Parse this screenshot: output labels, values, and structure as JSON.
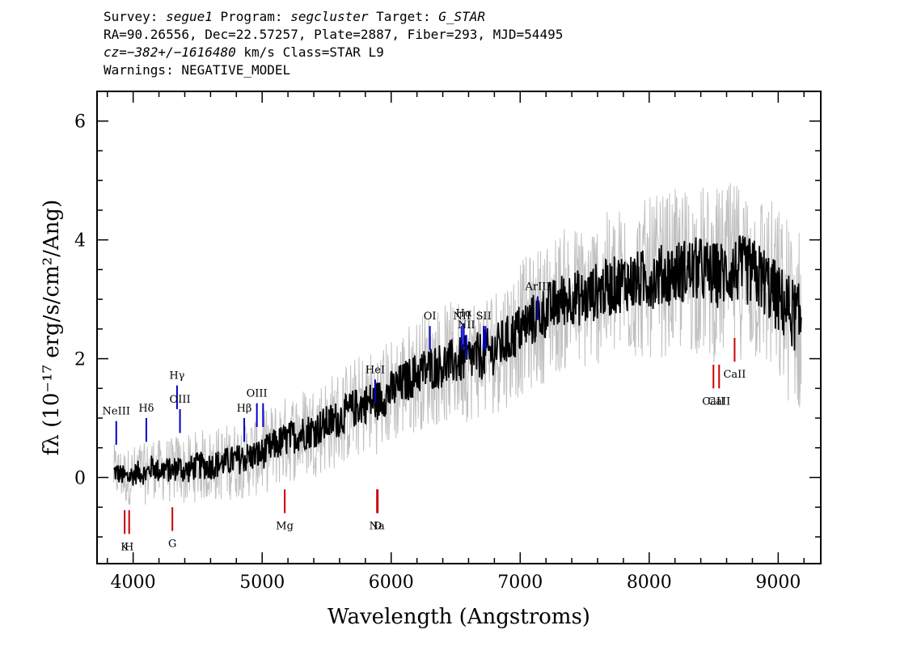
{
  "header": {
    "line1": {
      "survey_label": "Survey: ",
      "survey": "segue1",
      "program_label": " Program: ",
      "program": "segcluster",
      "target_label": " Target: ",
      "target": "G_STAR"
    },
    "line2": "RA=90.26556, Dec=22.57257, Plate=2887, Fiber=293, MJD=54495",
    "line3": {
      "cz": "cz=−382+/−1616480",
      "rest": " km/s Class=STAR L9"
    },
    "line4": "Warnings: NEGATIVE_MODEL"
  },
  "chart_data": {
    "type": "line",
    "xlabel": "Wavelength (Angstroms)",
    "ylabel": "fλ (10⁻¹⁷ erg/s/cm²/Ang)",
    "xlim": [
      3720,
      9330
    ],
    "ylim": [
      -1.45,
      6.5
    ],
    "x_ticks": [
      4000,
      5000,
      6000,
      7000,
      8000,
      9000
    ],
    "y_ticks": [
      0,
      2,
      4,
      6
    ],
    "colors": {
      "flux": "#000000",
      "error_band": "#c0c0c0",
      "emission": "#0000cc",
      "absorption": "#cc0000"
    },
    "series": [
      {
        "style": "black-smoothed",
        "x": [
          3850,
          3900,
          3950,
          4000,
          4050,
          4100,
          4150,
          4200,
          4250,
          4300,
          4350,
          4400,
          4450,
          4500,
          4600,
          4700,
          4800,
          4900,
          5000,
          5100,
          5200,
          5300,
          5400,
          5500,
          5600,
          5700,
          5800,
          5900,
          6000,
          6100,
          6200,
          6300,
          6400,
          6500,
          6600,
          6700,
          6800,
          6900,
          7000,
          7100,
          7200,
          7300,
          7400,
          7500,
          7600,
          7700,
          7800,
          7900,
          8000,
          8100,
          8200,
          8300,
          8400,
          8500,
          8600,
          8700,
          8800,
          8900,
          9000,
          9100,
          9180
        ],
        "y": [
          0.1,
          0.05,
          0.0,
          0.05,
          0.1,
          0.05,
          0.2,
          0.1,
          0.15,
          0.1,
          0.2,
          0.1,
          0.15,
          0.2,
          0.2,
          0.25,
          0.3,
          0.35,
          0.4,
          0.55,
          0.65,
          0.75,
          0.8,
          0.9,
          1.0,
          1.15,
          1.25,
          1.3,
          1.45,
          1.6,
          1.75,
          1.85,
          1.9,
          1.95,
          2.0,
          2.05,
          2.15,
          2.3,
          2.5,
          2.65,
          2.8,
          2.95,
          3.05,
          3.0,
          3.15,
          3.2,
          3.3,
          3.3,
          3.35,
          3.4,
          3.45,
          3.5,
          3.5,
          3.4,
          3.45,
          3.5,
          3.45,
          3.3,
          3.0,
          2.8,
          2.6
        ]
      }
    ],
    "emission_lines": [
      {
        "label": "NeIII",
        "wavelength": 3869,
        "y_top": 0.95
      },
      {
        "label": "Hδ",
        "wavelength": 4102,
        "y_top": 1.0
      },
      {
        "label": "Hγ",
        "wavelength": 4340,
        "y_top": 1.55
      },
      {
        "label": "OIII",
        "wavelength": 4363,
        "y_top": 1.15
      },
      {
        "label": "Hβ",
        "wavelength": 4861,
        "y_top": 1.0
      },
      {
        "label": "OIII",
        "wavelength": 4959,
        "y_top": 1.25
      },
      {
        "label": "OIII",
        "wavelength": 5007,
        "y_top": 1.25
      },
      {
        "label": "HeI",
        "wavelength": 5876,
        "y_top": 1.65
      },
      {
        "label": "OI",
        "wavelength": 6300,
        "y_top": 2.55
      },
      {
        "label": "NII",
        "wavelength": 6548,
        "y_top": 2.55
      },
      {
        "label": "Hα",
        "wavelength": 6563,
        "y_top": 2.6
      },
      {
        "label": "NII",
        "wavelength": 6583,
        "y_top": 2.4
      },
      {
        "label": "SII",
        "wavelength": 6717,
        "y_top": 2.55
      },
      {
        "label": "SII",
        "wavelength": 6731,
        "y_top": 2.55
      },
      {
        "label": "ArIII",
        "wavelength": 7136,
        "y_top": 3.05
      }
    ],
    "absorption_lines": [
      {
        "label": "K",
        "wavelength": 3934,
        "y_bottom": -0.95
      },
      {
        "label": "H",
        "wavelength": 3969,
        "y_bottom": -0.95
      },
      {
        "label": "G",
        "wavelength": 4304,
        "y_bottom": -0.9
      },
      {
        "label": "Mg",
        "wavelength": 5175,
        "y_bottom": -0.6
      },
      {
        "label": "Na",
        "wavelength": 5890,
        "y_bottom": -0.6
      },
      {
        "label": "D",
        "wavelength": 5896,
        "y_bottom": -0.6
      },
      {
        "label": "CaII",
        "wavelength": 8498,
        "y_bottom": 1.5
      },
      {
        "label": "CaII",
        "wavelength": 8542,
        "y_bottom": 1.5
      },
      {
        "label": "CaII",
        "wavelength": 8662,
        "y_bottom": 1.95
      }
    ]
  }
}
